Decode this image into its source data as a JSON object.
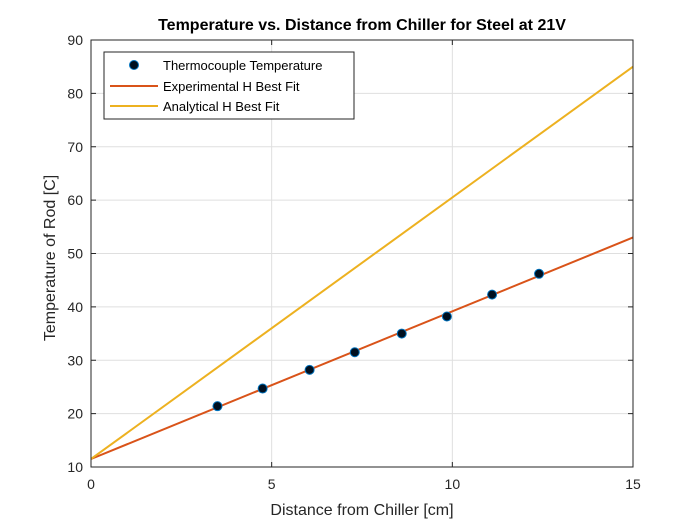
{
  "chart_data": {
    "type": "line",
    "title": "Temperature vs. Distance from Chiller for Steel at 21V",
    "xlabel": "Distance from Chiller [cm]",
    "ylabel": "Temperature of Rod [C]",
    "xlim": [
      0,
      15
    ],
    "ylim": [
      10,
      90
    ],
    "xticks": [
      0,
      5,
      10,
      15
    ],
    "yticks": [
      10,
      20,
      30,
      40,
      50,
      60,
      70,
      80,
      90
    ],
    "grid": true,
    "legend_position": "top-left",
    "series": [
      {
        "name": "Thermocouple Temperature",
        "kind": "scatter",
        "marker_color": "#001020",
        "marker_edge": "#0072BD",
        "x": [
          3.5,
          4.75,
          6.05,
          7.3,
          8.6,
          9.85,
          11.1,
          12.4
        ],
        "y": [
          21.4,
          24.7,
          28.2,
          31.5,
          35.0,
          38.2,
          42.3,
          46.2
        ]
      },
      {
        "name": "Experimental H Best Fit",
        "kind": "line",
        "color": "#D95319",
        "x": [
          0,
          15
        ],
        "y": [
          11.5,
          53.0
        ]
      },
      {
        "name": "Analytical H Best Fit",
        "kind": "line",
        "color": "#EDB120",
        "x": [
          0,
          15
        ],
        "y": [
          11.5,
          85.0
        ]
      }
    ]
  }
}
